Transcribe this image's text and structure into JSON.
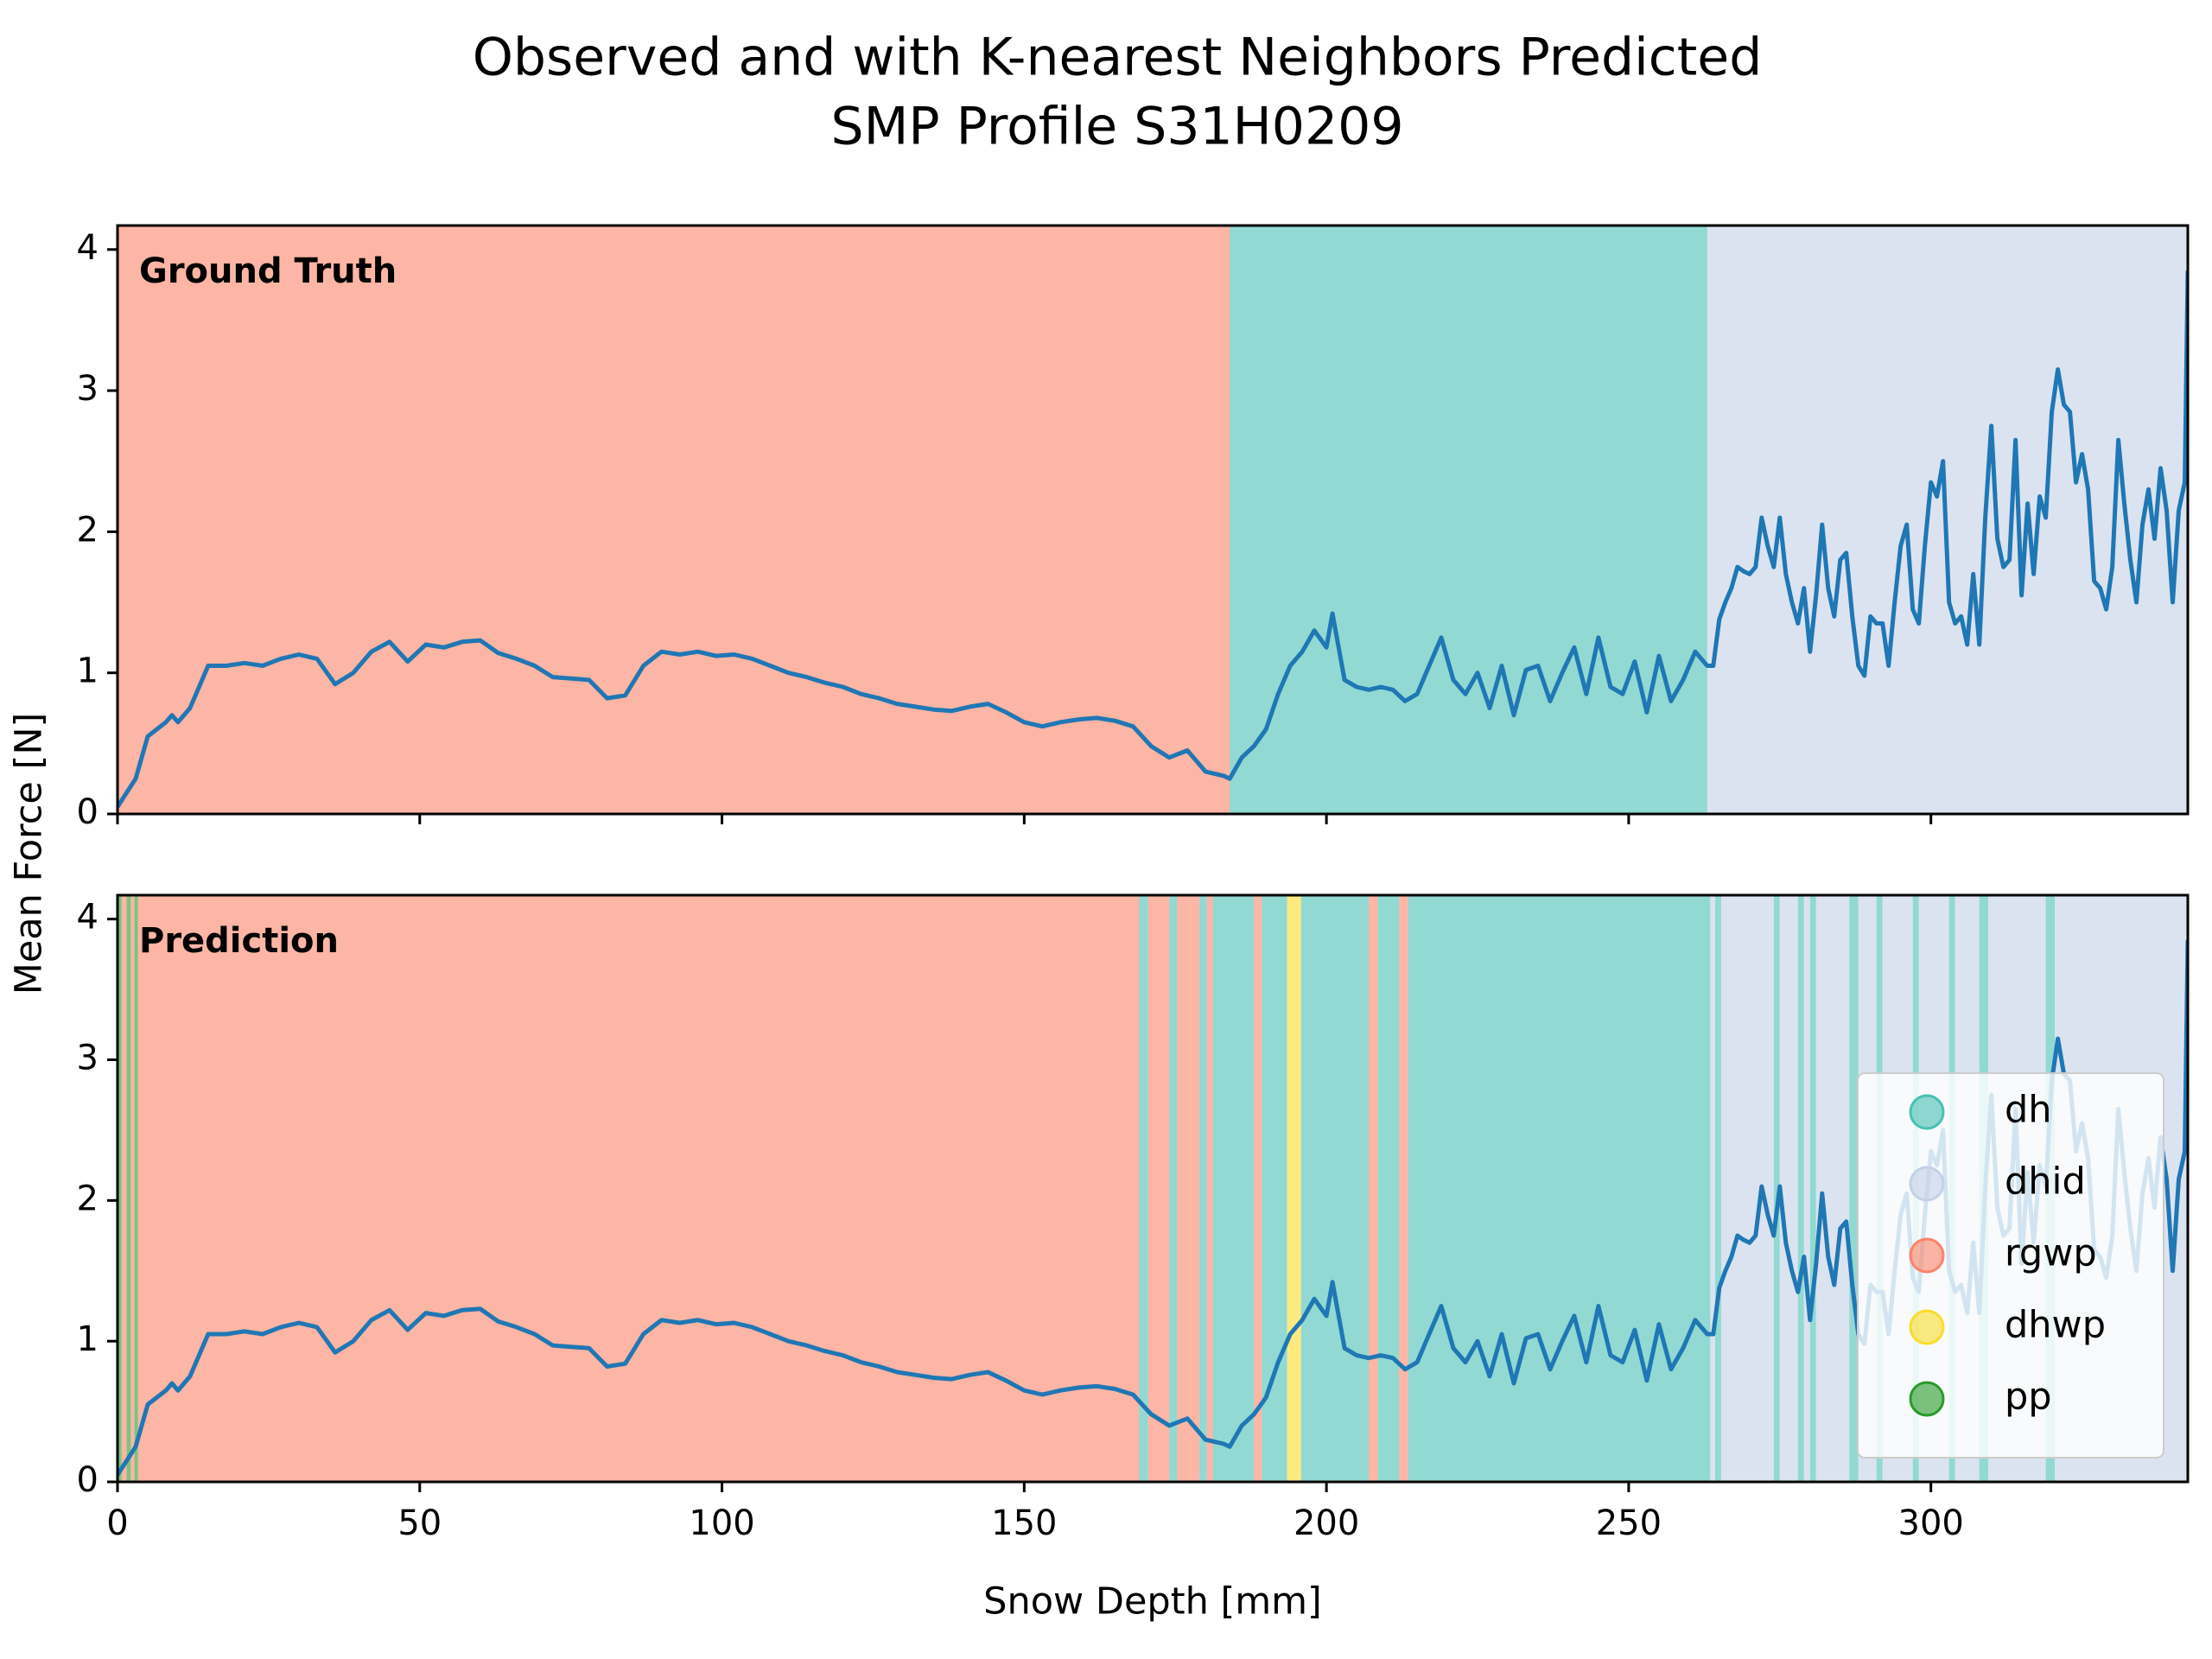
{
  "chart_data": {
    "type": "line",
    "title": "Observed and with K-nearest Neighbors Predicted",
    "subtitle": "SMP Profile S31H0209",
    "xlabel": "Snow Depth [mm]",
    "ylabel": "Mean Force [N]",
    "xlim": [
      0,
      342.5
    ],
    "xticks": [
      0,
      50,
      100,
      150,
      200,
      250,
      300
    ],
    "ylim": [
      0,
      4.17
    ],
    "yticks": [
      0,
      1,
      2,
      3,
      4
    ],
    "color": "#1f77b4",
    "legend": "lower right",
    "x": [
      0,
      3,
      5,
      8,
      9,
      10,
      12,
      15,
      18,
      21,
      24,
      27,
      30,
      33,
      36,
      39,
      42,
      45,
      48,
      51,
      54,
      57,
      60,
      63,
      66,
      69,
      72,
      75,
      78,
      81,
      84,
      87,
      90,
      93,
      96,
      99,
      102,
      105,
      108,
      111,
      114,
      117,
      120,
      123,
      126,
      129,
      132,
      135,
      138,
      141,
      144,
      147,
      150,
      153,
      156,
      159,
      162,
      165,
      168,
      171,
      174,
      177,
      180,
      183,
      184,
      186,
      188,
      190,
      192,
      194,
      196,
      198,
      200,
      201,
      203,
      205,
      207,
      209,
      211,
      213,
      215,
      217,
      219,
      221,
      223,
      225,
      227,
      229,
      231,
      233,
      235,
      237,
      239,
      241,
      243,
      245,
      247,
      249,
      251,
      253,
      255,
      257,
      259,
      261,
      263,
      264,
      265,
      266,
      267,
      268,
      269,
      270,
      271,
      272,
      273,
      274,
      275,
      276,
      277,
      278,
      279,
      280,
      281,
      282,
      283,
      284,
      285,
      286,
      287,
      288,
      289,
      290,
      291,
      292,
      293,
      294,
      295,
      296,
      297,
      298,
      299,
      300,
      301,
      302,
      303,
      304,
      305,
      306,
      307,
      308,
      309,
      310,
      311,
      312,
      313,
      314,
      315,
      316,
      317,
      318,
      319,
      320,
      321,
      322,
      323,
      324,
      325,
      326,
      327,
      328,
      329,
      330,
      331,
      332,
      333,
      334,
      335,
      336,
      337,
      338,
      339,
      340,
      341,
      342,
      342.5
    ],
    "values": [
      0.05,
      0.25,
      0.55,
      0.65,
      0.7,
      0.65,
      0.75,
      1.05,
      1.05,
      1.07,
      1.05,
      1.1,
      1.13,
      1.1,
      0.92,
      1.0,
      1.15,
      1.22,
      1.08,
      1.2,
      1.18,
      1.22,
      1.23,
      1.14,
      1.1,
      1.05,
      0.97,
      0.96,
      0.95,
      0.82,
      0.84,
      1.05,
      1.15,
      1.13,
      1.15,
      1.12,
      1.13,
      1.1,
      1.05,
      1.0,
      0.97,
      0.93,
      0.9,
      0.85,
      0.82,
      0.78,
      0.76,
      0.74,
      0.73,
      0.76,
      0.78,
      0.72,
      0.65,
      0.62,
      0.65,
      0.67,
      0.68,
      0.66,
      0.62,
      0.48,
      0.4,
      0.45,
      0.3,
      0.27,
      0.25,
      0.4,
      0.48,
      0.6,
      0.85,
      1.05,
      1.15,
      1.3,
      1.18,
      1.42,
      0.95,
      0.9,
      0.88,
      0.9,
      0.88,
      0.8,
      0.85,
      1.05,
      1.25,
      0.95,
      0.85,
      1.0,
      0.75,
      1.05,
      0.7,
      1.02,
      1.05,
      0.8,
      1.0,
      1.18,
      0.85,
      1.25,
      0.9,
      0.85,
      1.08,
      0.72,
      1.12,
      0.8,
      0.95,
      1.15,
      1.05,
      1.05,
      1.38,
      1.5,
      1.6,
      1.75,
      1.72,
      1.7,
      1.75,
      2.1,
      1.9,
      1.75,
      2.1,
      1.7,
      1.5,
      1.35,
      1.6,
      1.15,
      1.55,
      2.05,
      1.6,
      1.4,
      1.8,
      1.85,
      1.4,
      1.05,
      0.98,
      1.4,
      1.35,
      1.35,
      1.05,
      1.5,
      1.9,
      2.05,
      1.45,
      1.35,
      1.9,
      2.35,
      2.25,
      2.5,
      1.5,
      1.35,
      1.4,
      1.2,
      1.7,
      1.2,
      2.1,
      2.75,
      1.95,
      1.75,
      1.8,
      2.65,
      1.55,
      2.2,
      1.7,
      2.25,
      2.1,
      2.85,
      3.15,
      2.9,
      2.85,
      2.35,
      2.55,
      2.3,
      1.65,
      1.6,
      1.45,
      1.75,
      2.65,
      2.2,
      1.8,
      1.5,
      2.05,
      2.3,
      1.95,
      2.45,
      2.15,
      1.5,
      2.15,
      2.35,
      3.85
    ],
    "classes": [
      {
        "name": "dh",
        "color": "#48c0b4"
      },
      {
        "name": "dhid",
        "color": "#c3d1e6"
      },
      {
        "name": "rgwp",
        "color": "#fc8369"
      },
      {
        "name": "dhwp",
        "color": "#fadc2c"
      },
      {
        "name": "pp",
        "color": "#2a9a2a"
      }
    ],
    "panels": [
      {
        "label": "Ground Truth",
        "starts": [
          0,
          184,
          263
        ],
        "ends": [
          184,
          263,
          342.5
        ],
        "class": [
          2,
          0,
          1
        ]
      },
      {
        "label": "Prediction",
        "starts": [
          0,
          0.7,
          1.5,
          2.2,
          2.8,
          3.4,
          169,
          170.5,
          174,
          175.3,
          179,
          180.2,
          181.2,
          188,
          189.3,
          193.5,
          195.8,
          207,
          208.5,
          212,
          213.5,
          263.5,
          264.3,
          265.3,
          274,
          275,
          278,
          279,
          280,
          281,
          286.5,
          288,
          291,
          292,
          297,
          298,
          303,
          304,
          308,
          309.5,
          319,
          320.5
        ],
        "ends": [
          0.7,
          1.5,
          2.2,
          2.8,
          3.4,
          169,
          170.5,
          174,
          175.3,
          179,
          180.2,
          181.2,
          188,
          189.3,
          193.5,
          195.8,
          207,
          208.5,
          212,
          213.5,
          263.5,
          264.3,
          265.3,
          274,
          275,
          278,
          279,
          280,
          281,
          286.5,
          288,
          291,
          292,
          297,
          298,
          303,
          304,
          308,
          309.5,
          319,
          320.5,
          342.5
        ],
        "class": [
          4,
          2,
          4,
          2,
          4,
          2,
          0,
          2,
          0,
          2,
          0,
          2,
          0,
          2,
          0,
          3,
          0,
          2,
          0,
          2,
          0,
          1,
          0,
          1,
          0,
          1,
          0,
          1,
          0,
          1,
          0,
          1,
          0,
          1,
          0,
          1,
          0,
          1,
          0,
          1,
          0,
          1
        ]
      }
    ]
  }
}
